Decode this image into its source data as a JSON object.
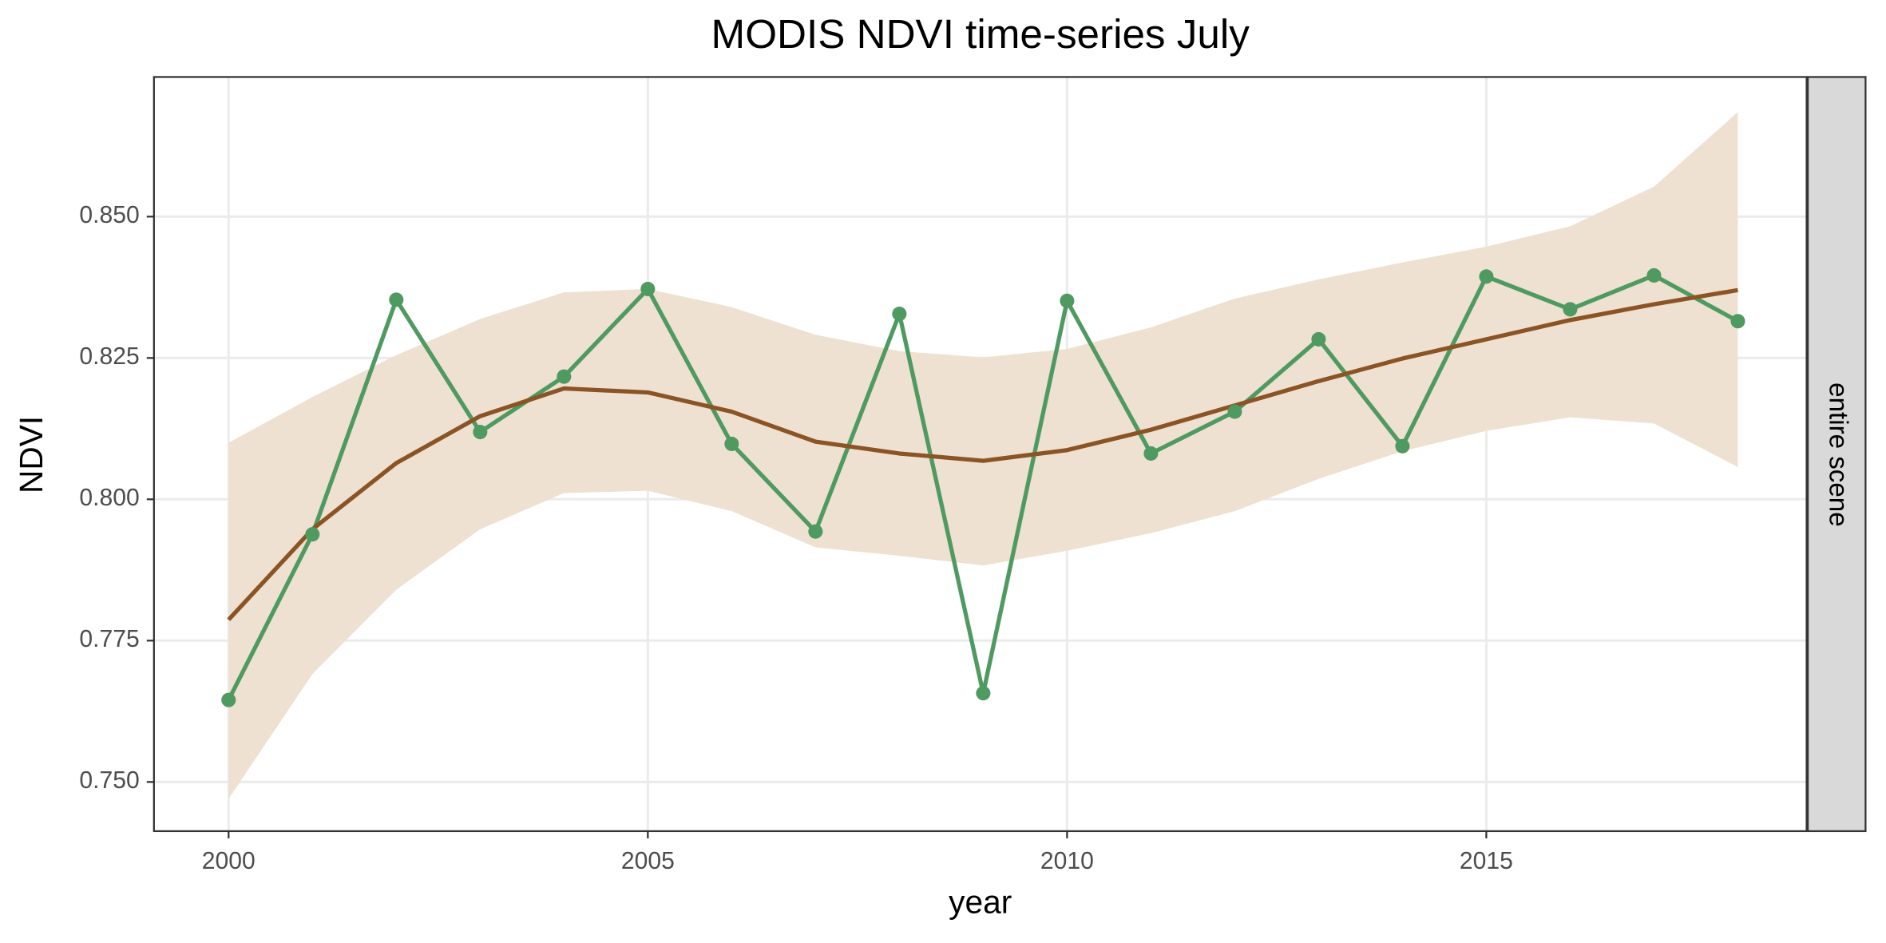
{
  "chart_data": {
    "type": "line",
    "title": "MODIS NDVI time-series July",
    "x_label": "year",
    "y_label": "NDVI",
    "facet_label": "entire scene",
    "x": [
      2000,
      2001,
      2002,
      2003,
      2004,
      2005,
      2006,
      2007,
      2008,
      2009,
      2010,
      2011,
      2012,
      2013,
      2014,
      2015,
      2016,
      2017,
      2018
    ],
    "values": [
      0.7645,
      0.7938,
      0.8353,
      0.8119,
      0.8217,
      0.8372,
      0.8098,
      0.7943,
      0.8328,
      0.7657,
      0.8351,
      0.8081,
      0.8155,
      0.8283,
      0.8094,
      0.8394,
      0.8336,
      0.8396,
      0.8315
    ],
    "color": "#4f9a60",
    "smooth_values": [
      0.7787,
      0.7947,
      0.8064,
      0.8147,
      0.8196,
      0.8189,
      0.8155,
      0.8102,
      0.8081,
      0.8068,
      0.8087,
      0.8123,
      0.8166,
      0.8209,
      0.8249,
      0.8283,
      0.8317,
      0.8345,
      0.837
    ],
    "smooth_upper": [
      0.81,
      0.8181,
      0.8255,
      0.8319,
      0.8366,
      0.8372,
      0.834,
      0.8291,
      0.8262,
      0.8251,
      0.8266,
      0.8304,
      0.8355,
      0.8389,
      0.8419,
      0.8447,
      0.8483,
      0.8553,
      0.8685
    ],
    "smooth_lower": [
      0.747,
      0.7691,
      0.784,
      0.7947,
      0.8011,
      0.8015,
      0.7979,
      0.7915,
      0.79,
      0.7883,
      0.7909,
      0.794,
      0.7979,
      0.8036,
      0.8085,
      0.8121,
      0.8145,
      0.8134,
      0.8057
    ],
    "smooth_color": "#8b5424",
    "band_color": "#eee1d2",
    "xlim": [
      1999.11,
      2018.82
    ],
    "ylim": [
      0.7413,
      0.8747
    ],
    "xticks": [
      2000,
      2005,
      2010,
      2015
    ],
    "yticks": [
      {
        "value": 0.75,
        "label": "0.750"
      },
      {
        "value": 0.775,
        "label": "0.775"
      },
      {
        "value": 0.8,
        "label": "0.800"
      },
      {
        "value": 0.825,
        "label": "0.825"
      },
      {
        "value": 0.85,
        "label": "0.850"
      }
    ],
    "grid": true
  }
}
